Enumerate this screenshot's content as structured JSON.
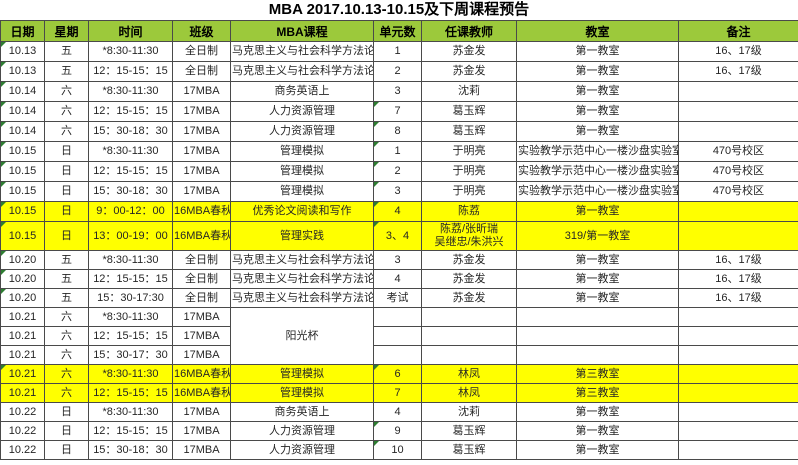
{
  "title": "MBA 2017.10.13-10.15及下周课程预告",
  "columns": [
    "日期",
    "星期",
    "时间",
    "班级",
    "MBA课程",
    "单元数",
    "任课教师",
    "教室",
    "备注"
  ],
  "colors": {
    "header_bg": "#9CC93B",
    "highlight": "#FFFF00",
    "border": "#4a4a4a",
    "triangle_indicator": "#2e7d32"
  },
  "merged_course_label": "阳光杯",
  "rows": [
    {
      "date": "10.13",
      "tri_date": true,
      "weekday": "五",
      "time": "*8:30-11:30",
      "class": "全日制",
      "course": "马克思主义与社会科学方法论",
      "units": "1",
      "teacher": "苏金发",
      "room": "第一教室",
      "note": "16、17级"
    },
    {
      "date": "10.13",
      "tri_date": true,
      "weekday": "五",
      "time": "12：15-15：15",
      "class": "全日制",
      "course": "马克思主义与社会科学方法论",
      "units": "2",
      "teacher": "苏金发",
      "room": "第一教室",
      "note": "16、17级"
    },
    {
      "date": "10.14",
      "tri_date": true,
      "weekday": "六",
      "time": "*8:30-11:30",
      "class": "17MBA",
      "course": "商务英语上",
      "units": "3",
      "teacher": "沈莉",
      "room": "第一教室",
      "note": ""
    },
    {
      "date": "10.14",
      "tri_date": true,
      "weekday": "六",
      "time": "12：15-15：15",
      "class": "17MBA",
      "course": "人力资源管理",
      "units": "7",
      "tri_units": true,
      "teacher": "葛玉辉",
      "room": "第一教室",
      "note": ""
    },
    {
      "date": "10.14",
      "tri_date": true,
      "weekday": "六",
      "time": "15：30-18：30",
      "class": "17MBA",
      "course": "人力资源管理",
      "units": "8",
      "tri_units": true,
      "teacher": "葛玉辉",
      "room": "第一教室",
      "note": ""
    },
    {
      "date": "10.15",
      "tri_date": true,
      "weekday": "日",
      "time": "*8:30-11:30",
      "class": "17MBA",
      "course": "管理模拟",
      "units": "1",
      "tri_units": true,
      "teacher": "于明亮",
      "room": "实验教学示范中心一楼沙盘实验室",
      "note": "470号校区"
    },
    {
      "date": "10.15",
      "tri_date": true,
      "weekday": "日",
      "time": "12：15-15：15",
      "class": "17MBA",
      "course": "管理模拟",
      "units": "2",
      "tri_units": true,
      "teacher": "于明亮",
      "room": "实验教学示范中心一楼沙盘实验室",
      "note": "470号校区"
    },
    {
      "date": "10.15",
      "tri_date": true,
      "weekday": "日",
      "time": "15：30-18：30",
      "class": "17MBA",
      "course": "管理模拟",
      "units": "3",
      "tri_units": true,
      "teacher": "于明亮",
      "room": "实验教学示范中心一楼沙盘实验室",
      "note": "470号校区"
    },
    {
      "date": "10.15",
      "tri_date": true,
      "weekday": "日",
      "time": "9：00-12：00",
      "class": "16MBA春秋",
      "course": "优秀论文阅读和写作",
      "units": "4",
      "tri_units": true,
      "teacher": "陈荔",
      "room": "第一教室",
      "note": "",
      "highlight": true
    },
    {
      "date": "10.15",
      "tri_date": true,
      "weekday": "日",
      "time": "13：00-19：00",
      "class": "16MBA春秋",
      "course": "管理实践",
      "units": "3、4",
      "tri_units": true,
      "teacher": "陈荔/张昕瑞\n吴继忠/朱洪兴",
      "room": "319/第一教室",
      "note": "",
      "highlight": true,
      "tall": true
    },
    {
      "date": "10.20",
      "tri_date": true,
      "weekday": "五",
      "time": "*8:30-11:30",
      "class": "全日制",
      "course": "马克思主义与社会科学方法论",
      "units": "3",
      "teacher": "苏金发",
      "room": "第一教室",
      "note": "16、17级"
    },
    {
      "date": "10.20",
      "tri_date": true,
      "weekday": "五",
      "time": "12：15-15：15",
      "class": "全日制",
      "course": "马克思主义与社会科学方法论",
      "units": "4",
      "teacher": "苏金发",
      "room": "第一教室",
      "note": "16、17级"
    },
    {
      "date": "10.20",
      "tri_date": true,
      "weekday": "五",
      "time": "15：30-17:30",
      "class": "全日制",
      "course": "马克思主义与社会科学方法论",
      "units": "考试",
      "teacher": "苏金发",
      "room": "第一教室",
      "note": "16、17级"
    },
    {
      "date": "10.21",
      "weekday": "六",
      "time": "*8:30-11:30",
      "class": "17MBA",
      "course": "阳光杯",
      "course_span": 3,
      "units": "",
      "teacher": "",
      "room": "",
      "note": ""
    },
    {
      "date": "10.21",
      "weekday": "六",
      "time": "12：15-15：15",
      "class": "17MBA",
      "course_skip": true,
      "units": "",
      "teacher": "",
      "room": "",
      "note": ""
    },
    {
      "date": "10.21",
      "weekday": "六",
      "time": "15：30-17：30",
      "class": "17MBA",
      "course_skip": true,
      "units": "",
      "teacher": "",
      "room": "",
      "note": ""
    },
    {
      "date": "10.21",
      "tri_date": true,
      "weekday": "六",
      "time": "*8:30-11:30",
      "class": "16MBA春秋",
      "course": "管理模拟",
      "units": "6",
      "tri_units": true,
      "teacher": "林凤",
      "room": "第三教室",
      "note": "",
      "highlight": true
    },
    {
      "date": "10.21",
      "weekday": "六",
      "time": "12：15-15：15",
      "class": "16MBA春秋",
      "course": "管理模拟",
      "units": "7",
      "teacher": "林凤",
      "room": "第三教室",
      "note": "",
      "highlight": true
    },
    {
      "date": "10.22",
      "weekday": "日",
      "time": "*8:30-11:30",
      "class": "17MBA",
      "course": "商务英语上",
      "units": "4",
      "teacher": "沈莉",
      "room": "第一教室",
      "note": ""
    },
    {
      "date": "10.22",
      "weekday": "日",
      "time": "12：15-15：15",
      "class": "17MBA",
      "course": "人力资源管理",
      "units": "9",
      "tri_units": true,
      "teacher": "葛玉辉",
      "room": "第一教室",
      "note": ""
    },
    {
      "date": "10.22",
      "weekday": "日",
      "time": "15：30-18：30",
      "class": "17MBA",
      "course": "人力资源管理",
      "units": "10",
      "tri_units": true,
      "teacher": "葛玉辉",
      "room": "第一教室",
      "note": ""
    }
  ]
}
